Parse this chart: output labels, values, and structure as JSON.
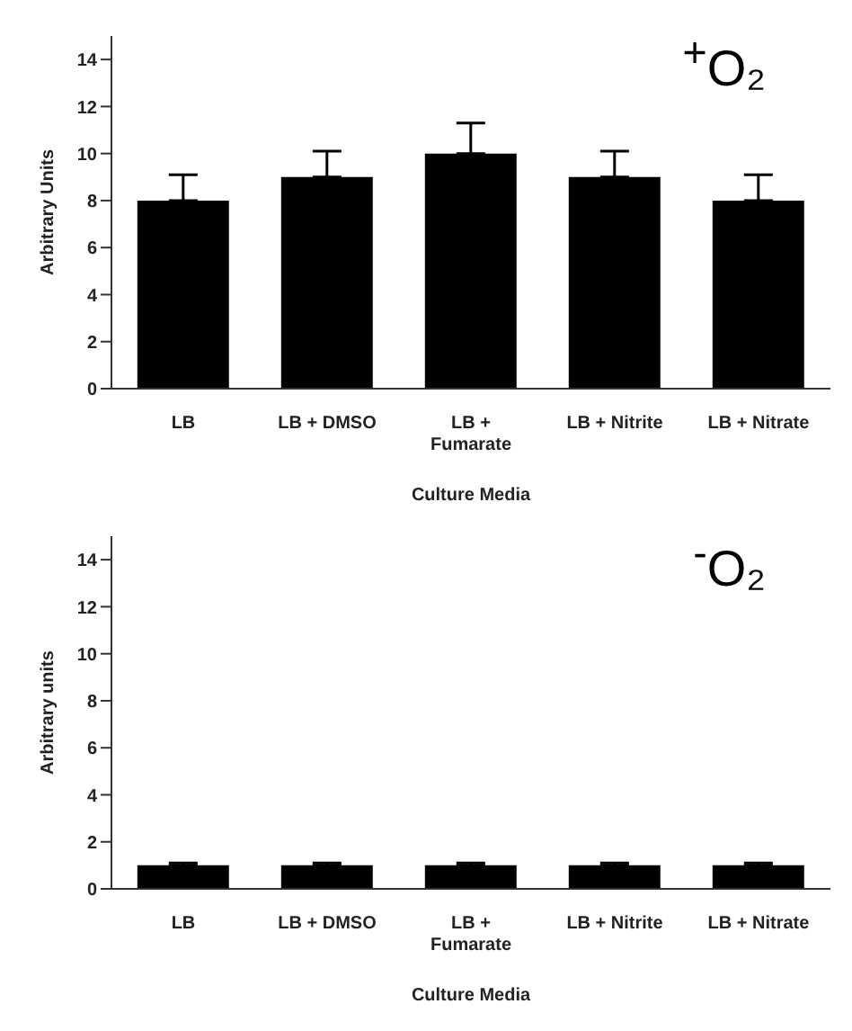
{
  "chart_data": [
    {
      "type": "bar",
      "title": "$^{+}$O₂",
      "xlabel": "Culture Media",
      "ylabel": "Arbitrary Units",
      "categories": [
        "LB",
        "LB + DMSO",
        "LB + Fumarate",
        "LB + Nitrite",
        "LB + Nitrate"
      ],
      "values": [
        8,
        9,
        10,
        9,
        8
      ],
      "errors": [
        [
          8,
          9.1
        ],
        [
          9,
          10.1
        ],
        [
          10,
          11.3
        ],
        [
          9,
          10.1
        ],
        [
          8,
          9.1
        ]
      ],
      "color": "#000000",
      "ylim": [
        0,
        15
      ],
      "yticks": [
        0,
        2,
        4,
        6,
        8,
        10,
        12,
        14
      ],
      "grid": false,
      "legend": false
    },
    {
      "type": "bar",
      "title": "$^{-}$O₂",
      "xlabel": "Culture Media",
      "ylabel": "Arbitrary units",
      "categories": [
        "LB",
        "LB + DMSO",
        "LB + Fumarate",
        "LB + Nitrite",
        "LB + Nitrate"
      ],
      "values": [
        1,
        1,
        1,
        1,
        1
      ],
      "errors": [
        [
          1,
          1.1
        ],
        [
          1,
          1.1
        ],
        [
          1,
          1.1
        ],
        [
          1,
          1.1
        ],
        [
          1,
          1.1
        ]
      ],
      "color": "#000000",
      "ylim": [
        0,
        15
      ],
      "yticks": [
        0,
        2,
        4,
        6,
        8,
        10,
        12,
        14
      ],
      "grid": false,
      "legend": false
    }
  ]
}
